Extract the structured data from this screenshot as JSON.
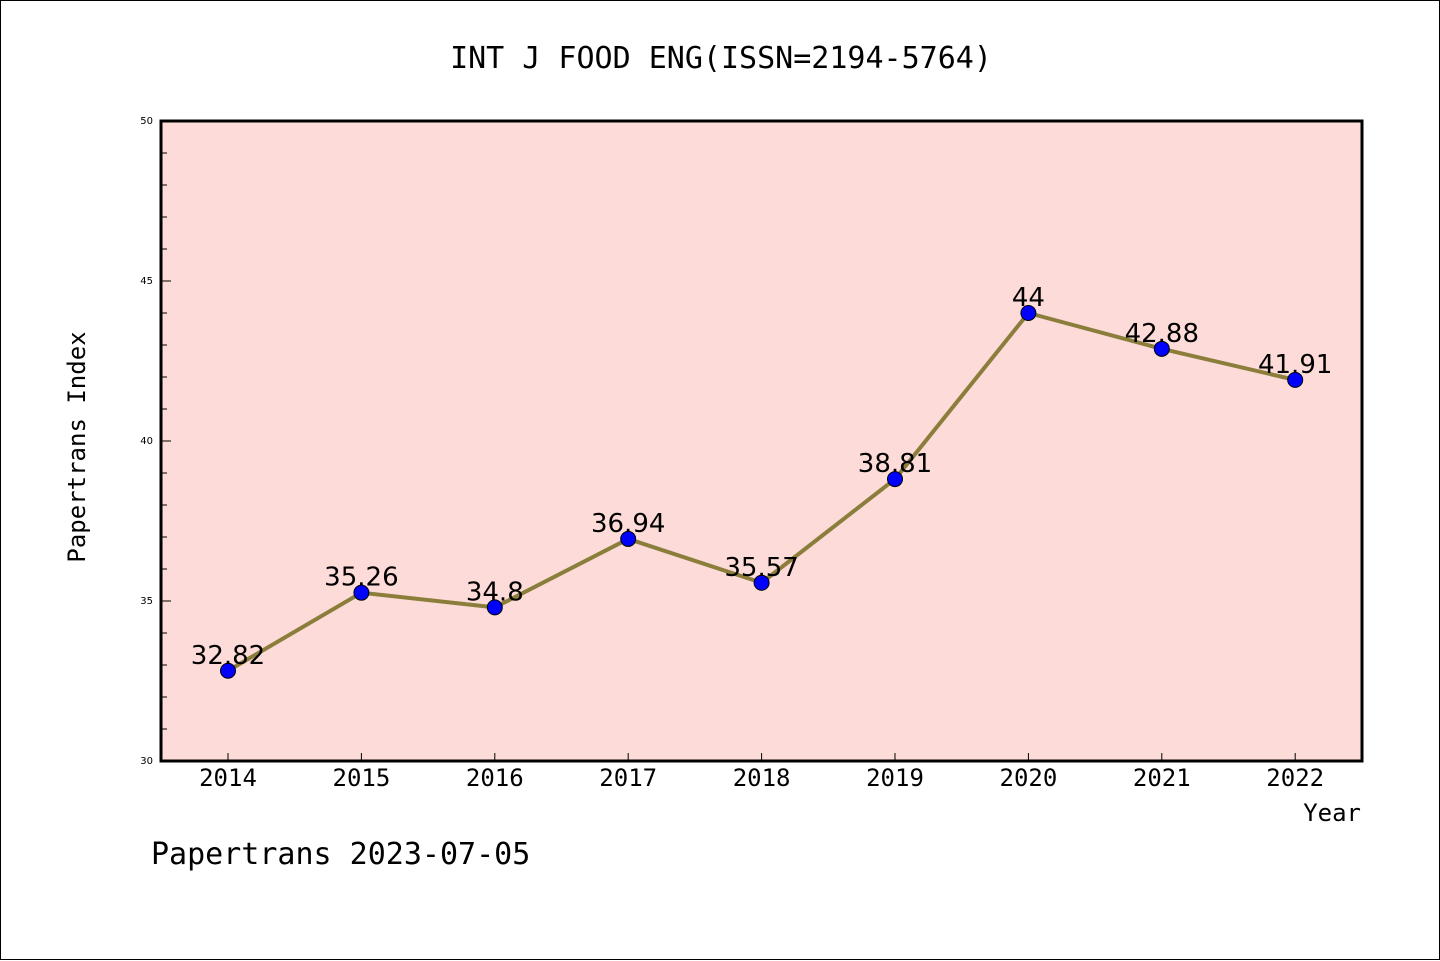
{
  "chart_data": {
    "type": "line",
    "title": "INT J FOOD ENG(ISSN=2194-5764)",
    "xlabel": "Year",
    "ylabel": "Papertrans Index",
    "categories": [
      "2014",
      "2015",
      "2016",
      "2017",
      "2018",
      "2019",
      "2020",
      "2021",
      "2022"
    ],
    "values": [
      32.82,
      35.26,
      34.8,
      36.94,
      35.57,
      38.81,
      44,
      42.88,
      41.91
    ],
    "data_labels": [
      "32.82",
      "35.26",
      "34.8",
      "36.94",
      "35.57",
      "38.81",
      "44",
      "42.88",
      "41.91"
    ],
    "ylim": [
      30,
      50
    ],
    "yticks": [
      "30",
      "35",
      "40",
      "45",
      "50"
    ],
    "grid": false,
    "colors": {
      "plot_background": "#fddbd8",
      "line": "#8b7d3a",
      "marker": "#0000ff"
    }
  },
  "footer": {
    "text": "Papertrans 2023-07-05"
  }
}
